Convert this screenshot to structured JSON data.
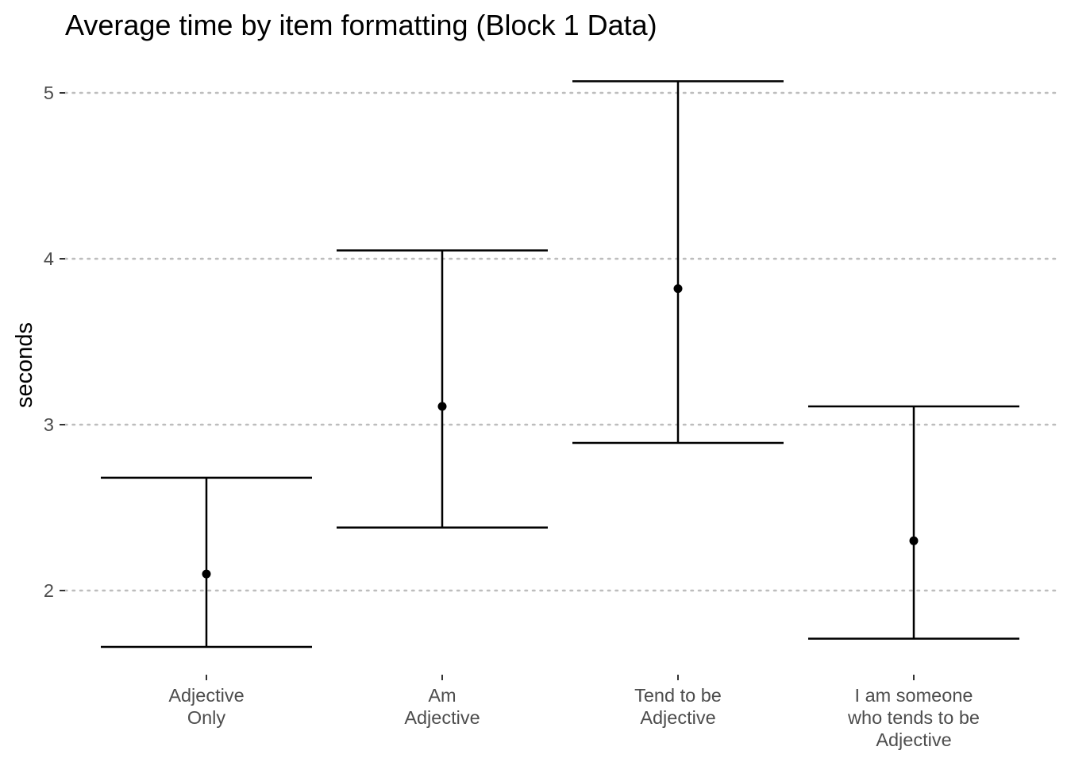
{
  "chart_data": {
    "type": "errorbar",
    "title": "Average time by item formatting (Block 1 Data)",
    "xlabel": "",
    "ylabel": "seconds",
    "ylim": [
      1.5,
      5.15
    ],
    "yticks": [
      "2",
      "3",
      "4",
      "5"
    ],
    "ytick_values": [
      2,
      3,
      4,
      5
    ],
    "grid": "horizontal-dotted",
    "categories": [
      [
        "Adjective",
        "Only"
      ],
      [
        "Am",
        "Adjective"
      ],
      [
        "Tend to be",
        "Adjective"
      ],
      [
        "I am someone",
        "who tends to be",
        "Adjective"
      ]
    ],
    "means": [
      2.1,
      3.11,
      3.82,
      2.3
    ],
    "lower": [
      1.66,
      2.38,
      2.89,
      1.71
    ],
    "upper": [
      2.68,
      4.05,
      5.07,
      3.11
    ],
    "colors": {
      "mark": "#000000",
      "grid": "#bdbdbd",
      "tick": "#4d4d4d",
      "background": "#ffffff"
    }
  }
}
